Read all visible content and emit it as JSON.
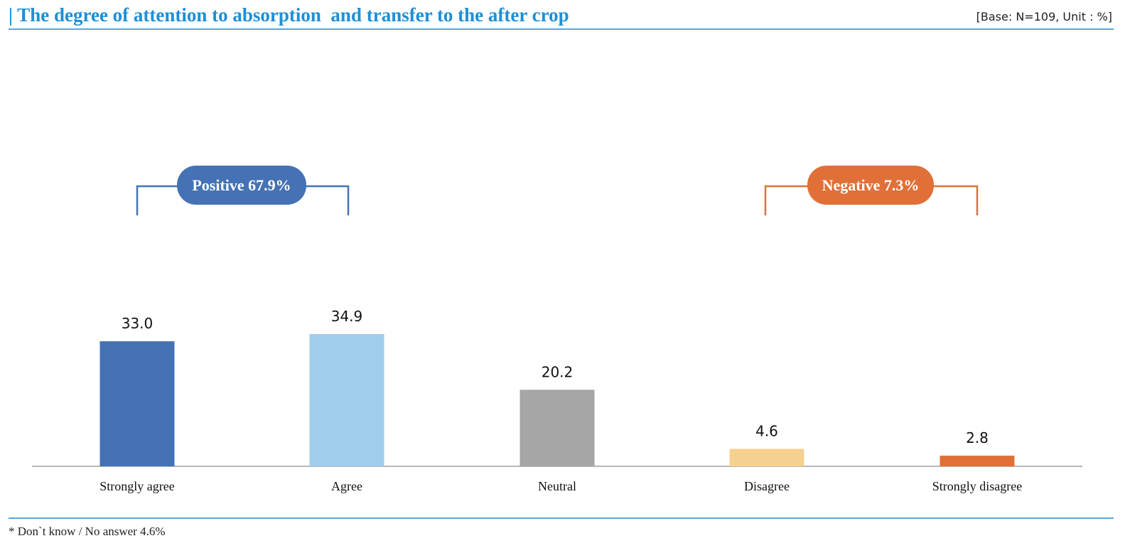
{
  "header": {
    "title": "| The degree of attention to absorption  and transfer to the after crop",
    "base": "[Base: N=109, Unit : %]"
  },
  "footnote": "* Don`t know / No answer 4.6%",
  "groups": {
    "positive": {
      "label": "Positive 67.9%",
      "color": "#4472b4"
    },
    "negative": {
      "label": "Negative 7.3%",
      "color": "#e07038"
    }
  },
  "chart_data": {
    "type": "bar",
    "categories": [
      "Strongly agree",
      "Agree",
      "Neutral",
      "Disagree",
      "Strongly disagree"
    ],
    "values": [
      33.0,
      34.9,
      20.2,
      4.6,
      2.8
    ],
    "value_labels": [
      "33.0",
      "34.9",
      "20.2",
      "4.6",
      "2.8"
    ],
    "colors": [
      "#4472b4",
      "#a0cdec",
      "#a6a6a6",
      "#f6d08e",
      "#e07038"
    ],
    "ylim": [
      0,
      100
    ],
    "grid": false
  }
}
